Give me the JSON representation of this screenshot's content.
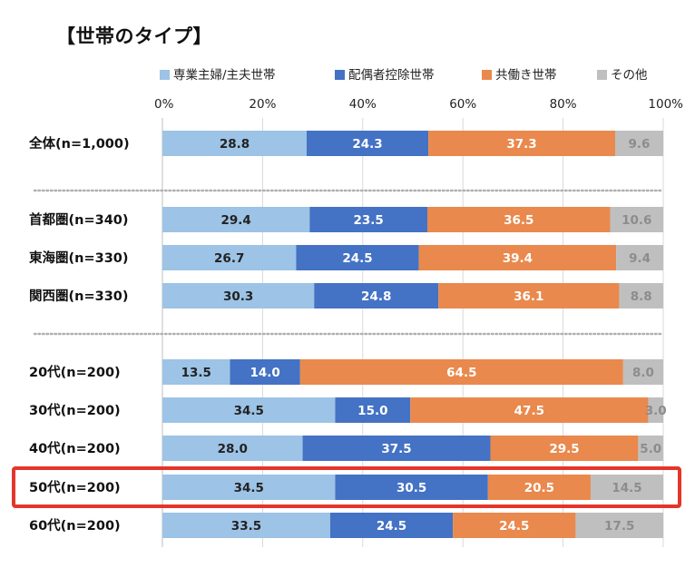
{
  "chart_data": {
    "type": "bar",
    "orientation": "horizontal",
    "stacked": true,
    "title": "【世帯のタイプ】",
    "xlim": [
      0,
      100
    ],
    "x_ticks": [
      "0%",
      "20%",
      "40%",
      "60%",
      "80%",
      "100%"
    ],
    "grid": true,
    "legend_position": "top",
    "series": [
      {
        "name": "専業主婦/主夫世帯",
        "color": "#9dc3e6",
        "label_color": "#222222"
      },
      {
        "name": "配偶者控除世帯",
        "color": "#4472c4",
        "label_color": "#ffffff"
      },
      {
        "name": "共働き世帯",
        "color": "#e9894d",
        "label_color": "#ffffff"
      },
      {
        "name": "その他",
        "color": "#bfbfbf",
        "label_color": "#8c8c8c"
      }
    ],
    "categories": [
      {
        "label": "全体(n=1,000)",
        "values": [
          28.8,
          24.3,
          37.3,
          9.6
        ],
        "labels": [
          "28.8",
          "24.3",
          "37.3",
          "9.6"
        ],
        "group": 0
      },
      {
        "label": "首都圏(n=340)",
        "values": [
          29.4,
          23.5,
          36.5,
          10.6
        ],
        "labels": [
          "29.4",
          "23.5",
          "36.5",
          "10.6"
        ],
        "group": 1
      },
      {
        "label": "東海圏(n=330)",
        "values": [
          26.7,
          24.5,
          39.4,
          9.4
        ],
        "labels": [
          "26.7",
          "24.5",
          "39.4",
          "9.4"
        ],
        "group": 1
      },
      {
        "label": "関西圏(n=330)",
        "values": [
          30.3,
          24.8,
          36.1,
          8.8
        ],
        "labels": [
          "30.3",
          "24.8",
          "36.1",
          "8.8"
        ],
        "group": 1
      },
      {
        "label": "20代(n=200)",
        "values": [
          13.5,
          14.0,
          64.5,
          8.0
        ],
        "labels": [
          "13.5",
          "14.0",
          "64.5",
          "8.0"
        ],
        "group": 2
      },
      {
        "label": "30代(n=200)",
        "values": [
          34.5,
          15.0,
          47.5,
          3.0
        ],
        "labels": [
          "34.5",
          "15.0",
          "47.5",
          "3.0"
        ],
        "group": 2
      },
      {
        "label": "40代(n=200)",
        "values": [
          28.0,
          37.5,
          29.5,
          5.0
        ],
        "labels": [
          "28.0",
          "37.5",
          "29.5",
          "5.0"
        ],
        "group": 2
      },
      {
        "label": "50代(n=200)",
        "values": [
          34.5,
          30.5,
          20.5,
          14.5
        ],
        "labels": [
          "34.5",
          "30.5",
          "20.5",
          "14.5"
        ],
        "group": 2,
        "highlighted": true
      },
      {
        "label": "60代(n=200)",
        "values": [
          33.5,
          24.5,
          24.5,
          17.5
        ],
        "labels": [
          "33.5",
          "24.5",
          "24.5",
          "17.5"
        ],
        "group": 2
      }
    ],
    "highlight_color": "#e5352a"
  }
}
